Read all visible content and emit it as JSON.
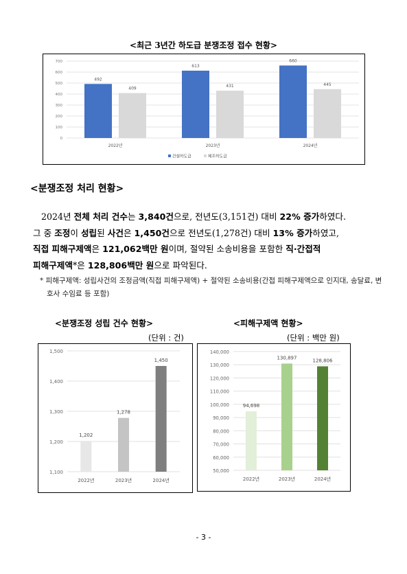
{
  "charts": {
    "top": {
      "title": "<최근 3년간 하도급 분쟁조정 접수 현황>",
      "chart_data": {
        "type": "bar",
        "categories": [
          "2022년",
          "2023년",
          "2024년"
        ],
        "series": [
          {
            "name": "건설하도급",
            "color": "#4472C4",
            "values": [
              492,
              613,
              660
            ]
          },
          {
            "name": "제조하도급",
            "color": "#D9D9D9",
            "values": [
              409,
              431,
              445
            ]
          }
        ],
        "ylim": [
          0,
          700
        ],
        "yticks": [
          0,
          100,
          200,
          300,
          400,
          500,
          600,
          700
        ],
        "grid": true,
        "legend": "bottom"
      }
    },
    "left": {
      "title": "<분쟁조정 성립 건수 현황>",
      "unit": "(단위 : 건)",
      "chart_data": {
        "type": "bar",
        "categories": [
          "2022년",
          "2023년",
          "2024년"
        ],
        "values": [
          1202,
          1278,
          1450
        ],
        "value_labels": [
          "1,202",
          "1,278",
          "1,450"
        ],
        "colors": [
          "#E7E7E7",
          "#C4C4C4",
          "#7F7F7F"
        ],
        "ylim": [
          1100,
          1500
        ],
        "yticks": [
          "1,100",
          "1,200",
          "1,300",
          "1,400",
          "1,500"
        ],
        "grid": true
      }
    },
    "right": {
      "title": "<피해구제액 현황>",
      "unit": "(단위 : 백만 원)",
      "chart_data": {
        "type": "bar",
        "categories": [
          "2022년",
          "2023년",
          "2024년"
        ],
        "values": [
          94698,
          130897,
          128806
        ],
        "value_labels": [
          "94,698",
          "130,897",
          "128,806"
        ],
        "colors": [
          "#E2EFD9",
          "#A9D18E",
          "#548235"
        ],
        "ylim": [
          50000,
          140000
        ],
        "yticks": [
          "50,000",
          "60,000",
          "70,000",
          "80,000",
          "90,000",
          "100,000",
          "110,000",
          "120,000",
          "130,000",
          "140,000"
        ],
        "grid": true
      }
    }
  },
  "section": {
    "heading": "<분쟁조정 처리 현황>",
    "line1": [
      {
        "t": "2024년 ",
        "b": false
      },
      {
        "t": "전체 처리 건수",
        "b": true
      },
      {
        "t": "는 ",
        "b": false
      },
      {
        "t": "3,840건",
        "b": true
      },
      {
        "t": "으로, 전년도(3,151건) 대비 ",
        "b": false
      },
      {
        "t": "22% 증가",
        "b": true
      },
      {
        "t": "하였다.",
        "b": false
      }
    ],
    "line2": [
      {
        "t": "그 중 ",
        "b": false
      },
      {
        "t": "조정",
        "b": true
      },
      {
        "t": "이 ",
        "b": false
      },
      {
        "t": "성립",
        "b": true
      },
      {
        "t": "된 ",
        "b": false
      },
      {
        "t": "사건",
        "b": true
      },
      {
        "t": "은 ",
        "b": false
      },
      {
        "t": "1,450건",
        "b": true
      },
      {
        "t": "으로 전년도(1,278건) 대비 ",
        "b": false
      },
      {
        "t": "13% 증가",
        "b": true
      },
      {
        "t": "하였고,",
        "b": false
      }
    ],
    "line3": [
      {
        "t": "직접 피해구제액",
        "b": true
      },
      {
        "t": "은 ",
        "b": false
      },
      {
        "t": "121,062백만 원",
        "b": true
      },
      {
        "t": "이며, 절약된 소송비용을 포함한 ",
        "b": false
      },
      {
        "t": "직·간접적",
        "b": true
      }
    ],
    "line4": [
      {
        "t": "피해구제액",
        "b": true
      },
      {
        "t": "*은 ",
        "b": false
      },
      {
        "t": "128,806백만 원",
        "b": true
      },
      {
        "t": "으로 파악된다.",
        "b": false
      }
    ],
    "note": "* 피해구제액: 성립사건의 조정금액(직접 피해구제액) + 절약된 소송비용(간접 피해구제액으로 인지대, 송달료, 변호사 수임료 등 포함)"
  },
  "page_number": "- 3 -"
}
